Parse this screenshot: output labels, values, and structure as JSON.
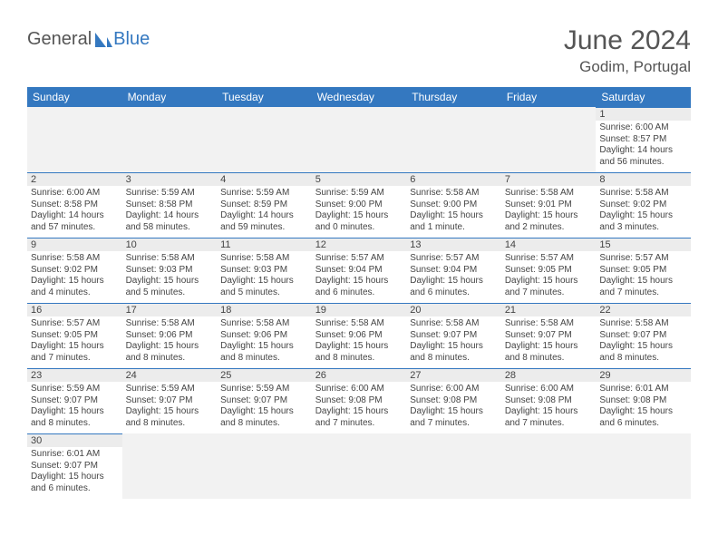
{
  "logo": {
    "text1": "General",
    "text2": "Blue"
  },
  "title": "June 2024",
  "location": "Godim, Portugal",
  "colors": {
    "header_bg": "#3478c0",
    "header_text": "#ffffff",
    "daynum_bg": "#ececec",
    "border": "#3478c0",
    "body_text": "#444444"
  },
  "weekdays": [
    "Sunday",
    "Monday",
    "Tuesday",
    "Wednesday",
    "Thursday",
    "Friday",
    "Saturday"
  ],
  "weeks": [
    [
      null,
      null,
      null,
      null,
      null,
      null,
      {
        "n": "1",
        "sr": "Sunrise: 6:00 AM",
        "ss": "Sunset: 8:57 PM",
        "dl": "Daylight: 14 hours and 56 minutes."
      }
    ],
    [
      {
        "n": "2",
        "sr": "Sunrise: 6:00 AM",
        "ss": "Sunset: 8:58 PM",
        "dl": "Daylight: 14 hours and 57 minutes."
      },
      {
        "n": "3",
        "sr": "Sunrise: 5:59 AM",
        "ss": "Sunset: 8:58 PM",
        "dl": "Daylight: 14 hours and 58 minutes."
      },
      {
        "n": "4",
        "sr": "Sunrise: 5:59 AM",
        "ss": "Sunset: 8:59 PM",
        "dl": "Daylight: 14 hours and 59 minutes."
      },
      {
        "n": "5",
        "sr": "Sunrise: 5:59 AM",
        "ss": "Sunset: 9:00 PM",
        "dl": "Daylight: 15 hours and 0 minutes."
      },
      {
        "n": "6",
        "sr": "Sunrise: 5:58 AM",
        "ss": "Sunset: 9:00 PM",
        "dl": "Daylight: 15 hours and 1 minute."
      },
      {
        "n": "7",
        "sr": "Sunrise: 5:58 AM",
        "ss": "Sunset: 9:01 PM",
        "dl": "Daylight: 15 hours and 2 minutes."
      },
      {
        "n": "8",
        "sr": "Sunrise: 5:58 AM",
        "ss": "Sunset: 9:02 PM",
        "dl": "Daylight: 15 hours and 3 minutes."
      }
    ],
    [
      {
        "n": "9",
        "sr": "Sunrise: 5:58 AM",
        "ss": "Sunset: 9:02 PM",
        "dl": "Daylight: 15 hours and 4 minutes."
      },
      {
        "n": "10",
        "sr": "Sunrise: 5:58 AM",
        "ss": "Sunset: 9:03 PM",
        "dl": "Daylight: 15 hours and 5 minutes."
      },
      {
        "n": "11",
        "sr": "Sunrise: 5:58 AM",
        "ss": "Sunset: 9:03 PM",
        "dl": "Daylight: 15 hours and 5 minutes."
      },
      {
        "n": "12",
        "sr": "Sunrise: 5:57 AM",
        "ss": "Sunset: 9:04 PM",
        "dl": "Daylight: 15 hours and 6 minutes."
      },
      {
        "n": "13",
        "sr": "Sunrise: 5:57 AM",
        "ss": "Sunset: 9:04 PM",
        "dl": "Daylight: 15 hours and 6 minutes."
      },
      {
        "n": "14",
        "sr": "Sunrise: 5:57 AM",
        "ss": "Sunset: 9:05 PM",
        "dl": "Daylight: 15 hours and 7 minutes."
      },
      {
        "n": "15",
        "sr": "Sunrise: 5:57 AM",
        "ss": "Sunset: 9:05 PM",
        "dl": "Daylight: 15 hours and 7 minutes."
      }
    ],
    [
      {
        "n": "16",
        "sr": "Sunrise: 5:57 AM",
        "ss": "Sunset: 9:05 PM",
        "dl": "Daylight: 15 hours and 7 minutes."
      },
      {
        "n": "17",
        "sr": "Sunrise: 5:58 AM",
        "ss": "Sunset: 9:06 PM",
        "dl": "Daylight: 15 hours and 8 minutes."
      },
      {
        "n": "18",
        "sr": "Sunrise: 5:58 AM",
        "ss": "Sunset: 9:06 PM",
        "dl": "Daylight: 15 hours and 8 minutes."
      },
      {
        "n": "19",
        "sr": "Sunrise: 5:58 AM",
        "ss": "Sunset: 9:06 PM",
        "dl": "Daylight: 15 hours and 8 minutes."
      },
      {
        "n": "20",
        "sr": "Sunrise: 5:58 AM",
        "ss": "Sunset: 9:07 PM",
        "dl": "Daylight: 15 hours and 8 minutes."
      },
      {
        "n": "21",
        "sr": "Sunrise: 5:58 AM",
        "ss": "Sunset: 9:07 PM",
        "dl": "Daylight: 15 hours and 8 minutes."
      },
      {
        "n": "22",
        "sr": "Sunrise: 5:58 AM",
        "ss": "Sunset: 9:07 PM",
        "dl": "Daylight: 15 hours and 8 minutes."
      }
    ],
    [
      {
        "n": "23",
        "sr": "Sunrise: 5:59 AM",
        "ss": "Sunset: 9:07 PM",
        "dl": "Daylight: 15 hours and 8 minutes."
      },
      {
        "n": "24",
        "sr": "Sunrise: 5:59 AM",
        "ss": "Sunset: 9:07 PM",
        "dl": "Daylight: 15 hours and 8 minutes."
      },
      {
        "n": "25",
        "sr": "Sunrise: 5:59 AM",
        "ss": "Sunset: 9:07 PM",
        "dl": "Daylight: 15 hours and 8 minutes."
      },
      {
        "n": "26",
        "sr": "Sunrise: 6:00 AM",
        "ss": "Sunset: 9:08 PM",
        "dl": "Daylight: 15 hours and 7 minutes."
      },
      {
        "n": "27",
        "sr": "Sunrise: 6:00 AM",
        "ss": "Sunset: 9:08 PM",
        "dl": "Daylight: 15 hours and 7 minutes."
      },
      {
        "n": "28",
        "sr": "Sunrise: 6:00 AM",
        "ss": "Sunset: 9:08 PM",
        "dl": "Daylight: 15 hours and 7 minutes."
      },
      {
        "n": "29",
        "sr": "Sunrise: 6:01 AM",
        "ss": "Sunset: 9:08 PM",
        "dl": "Daylight: 15 hours and 6 minutes."
      }
    ],
    [
      {
        "n": "30",
        "sr": "Sunrise: 6:01 AM",
        "ss": "Sunset: 9:07 PM",
        "dl": "Daylight: 15 hours and 6 minutes."
      },
      null,
      null,
      null,
      null,
      null,
      null
    ]
  ]
}
